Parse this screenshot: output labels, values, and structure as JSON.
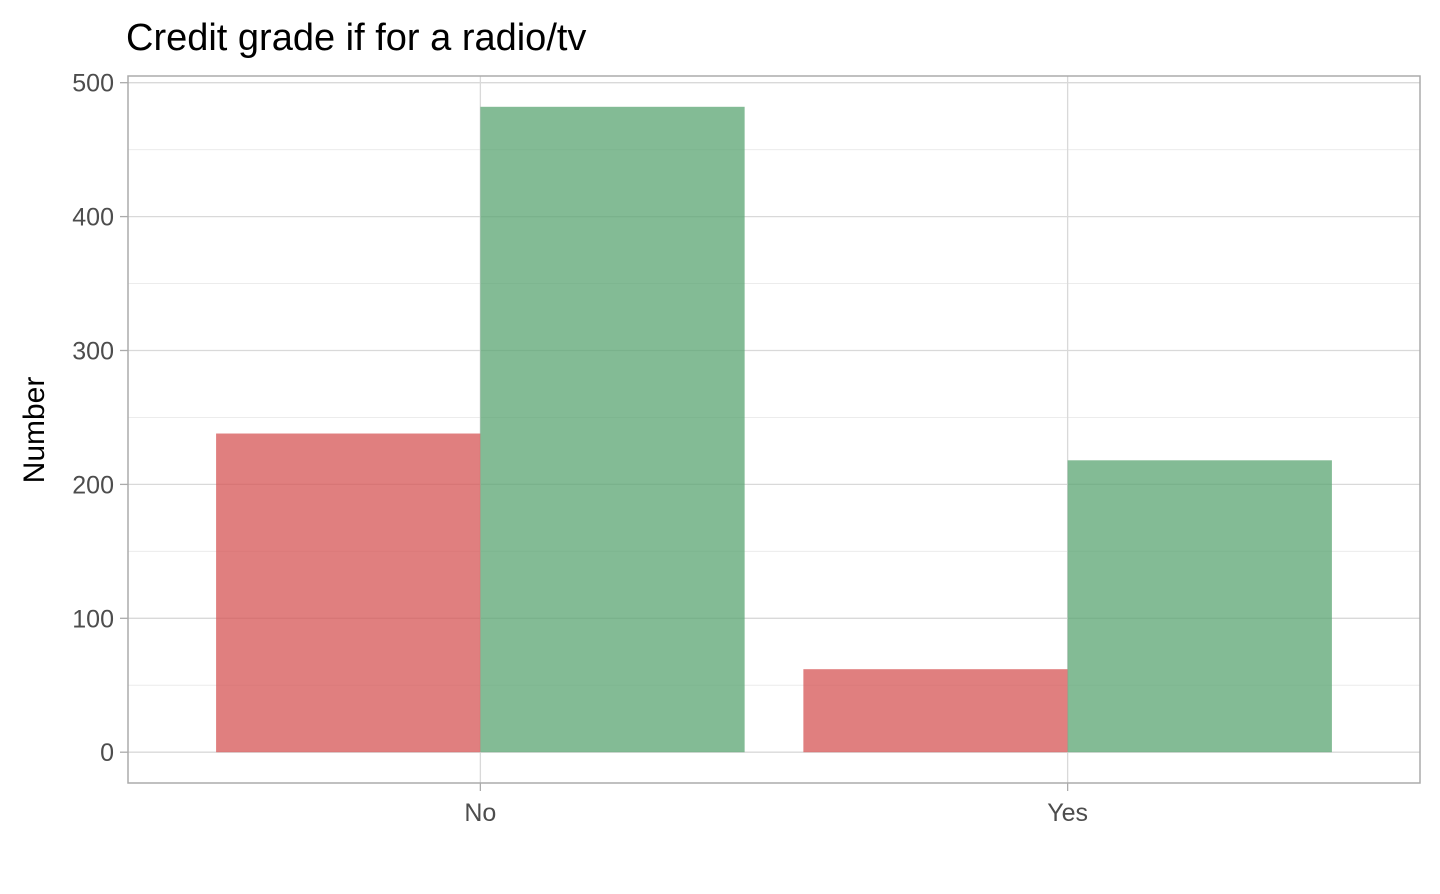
{
  "chart_data": {
    "type": "bar",
    "title": "Credit grade if for a radio/tv",
    "xlabel": "",
    "ylabel": "Number",
    "categories": [
      "No",
      "Yes"
    ],
    "series": [
      {
        "values": [
          238,
          62
        ],
        "color": "#d65454"
      },
      {
        "values": [
          482,
          218
        ],
        "color": "#5aa472"
      }
    ],
    "ylim": [
      -23,
      505
    ],
    "yticks": [
      0,
      100,
      200,
      300,
      400,
      500
    ],
    "bar_opacity": 0.75,
    "grid": true,
    "legend": "none"
  }
}
